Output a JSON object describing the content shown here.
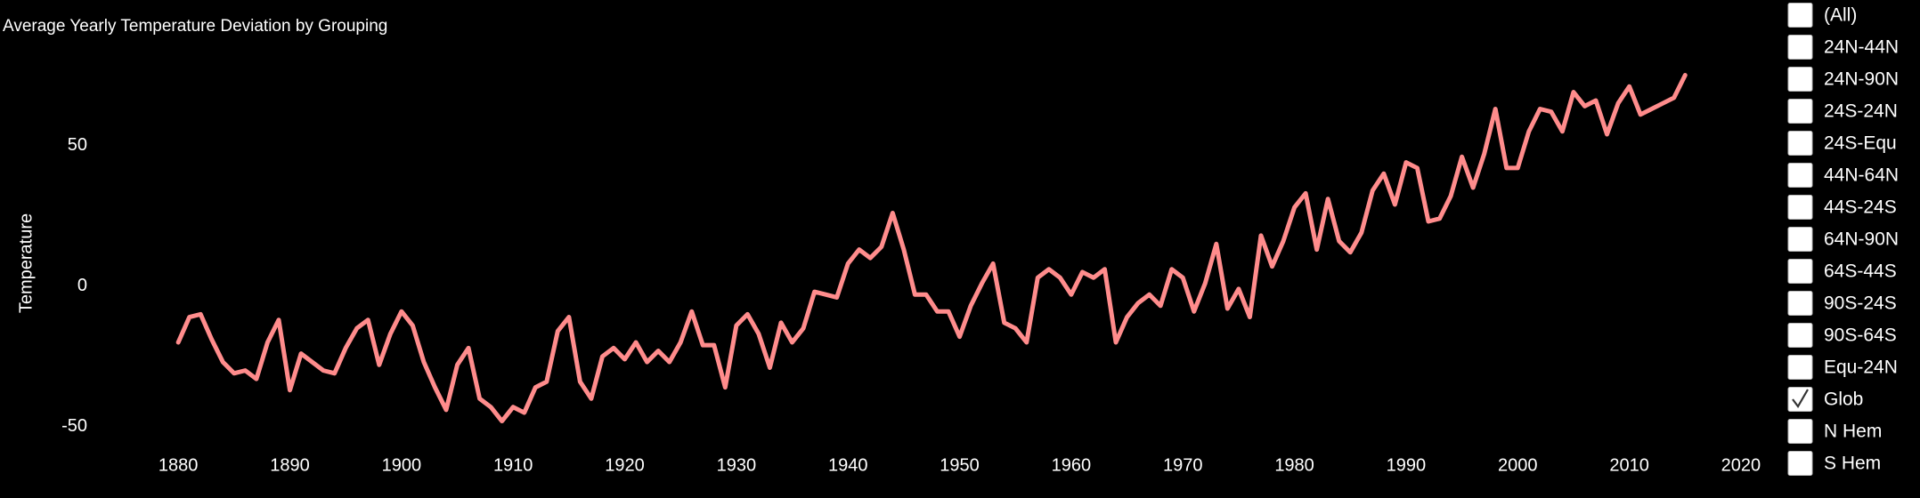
{
  "chart_data": {
    "type": "line",
    "title": "Average Yearly Temperature Deviation by Grouping",
    "y_label": "Temperature",
    "color": "#ff8c8c",
    "x": [
      1880,
      1881,
      1882,
      1883,
      1884,
      1885,
      1886,
      1887,
      1888,
      1889,
      1890,
      1891,
      1892,
      1893,
      1894,
      1895,
      1896,
      1897,
      1898,
      1899,
      1900,
      1901,
      1902,
      1903,
      1904,
      1905,
      1906,
      1907,
      1908,
      1909,
      1910,
      1911,
      1912,
      1913,
      1914,
      1915,
      1916,
      1917,
      1918,
      1919,
      1920,
      1921,
      1922,
      1923,
      1924,
      1925,
      1926,
      1927,
      1928,
      1929,
      1930,
      1931,
      1932,
      1933,
      1934,
      1935,
      1936,
      1937,
      1938,
      1939,
      1940,
      1941,
      1942,
      1943,
      1944,
      1945,
      1946,
      1947,
      1948,
      1949,
      1950,
      1951,
      1952,
      1953,
      1954,
      1955,
      1956,
      1957,
      1958,
      1959,
      1960,
      1961,
      1962,
      1963,
      1964,
      1965,
      1966,
      1967,
      1968,
      1969,
      1970,
      1971,
      1972,
      1973,
      1974,
      1975,
      1976,
      1977,
      1978,
      1979,
      1980,
      1981,
      1982,
      1983,
      1984,
      1985,
      1986,
      1987,
      1988,
      1989,
      1990,
      1991,
      1992,
      1993,
      1994,
      1995,
      1996,
      1997,
      1998,
      1999,
      2000,
      2001,
      2002,
      2003,
      2004,
      2005,
      2006,
      2007,
      2008,
      2009,
      2010,
      2011,
      2012,
      2013,
      2014,
      2015
    ],
    "values": [
      -20,
      -11,
      -10,
      -19,
      -27,
      -31,
      -30,
      -33,
      -20,
      -12,
      -37,
      -24,
      -27,
      -30,
      -31,
      -22,
      -15,
      -12,
      -28,
      -17,
      -9,
      -14,
      -27,
      -36,
      -44,
      -28,
      -22,
      -40,
      -43,
      -48,
      -43,
      -45,
      -36,
      -34,
      -16,
      -11,
      -34,
      -40,
      -25,
      -22,
      -26,
      -20,
      -27,
      -23,
      -27,
      -20,
      -9,
      -21,
      -21,
      -36,
      -14,
      -10,
      -17,
      -29,
      -13,
      -20,
      -15,
      -2,
      -3,
      -4,
      8,
      13,
      10,
      14,
      26,
      13,
      -3,
      -3,
      -9,
      -9,
      -18,
      -7,
      1,
      8,
      -13,
      -15,
      -20,
      3,
      6,
      3,
      -3,
      5,
      3,
      6,
      -20,
      -11,
      -6,
      -3,
      -7,
      6,
      3,
      -9,
      1,
      15,
      -8,
      -1,
      -11,
      18,
      7,
      16,
      28,
      33,
      13,
      31,
      16,
      12,
      19,
      34,
      40,
      29,
      44,
      42,
      23,
      24,
      32,
      46,
      35,
      47,
      63,
      42,
      42,
      55,
      63,
      62,
      55,
      69,
      64,
      66,
      54,
      65,
      71,
      61,
      63,
      65,
      67,
      75
    ],
    "xlim": [
      1875,
      2022
    ],
    "ylim": [
      -60,
      95
    ],
    "xticks": [
      1880,
      1890,
      1900,
      1910,
      1920,
      1930,
      1940,
      1950,
      1960,
      1970,
      1980,
      1990,
      2000,
      2010,
      2020
    ],
    "yticks": [
      -50,
      0,
      50
    ]
  },
  "checklist": {
    "items": [
      {
        "label": "(All)",
        "checked": false
      },
      {
        "label": "24N-44N",
        "checked": false
      },
      {
        "label": "24N-90N",
        "checked": false
      },
      {
        "label": "24S-24N",
        "checked": false
      },
      {
        "label": "24S-Equ",
        "checked": false
      },
      {
        "label": "44N-64N",
        "checked": false
      },
      {
        "label": "44S-24S",
        "checked": false
      },
      {
        "label": "64N-90N",
        "checked": false
      },
      {
        "label": "64S-44S",
        "checked": false
      },
      {
        "label": "90S-24S",
        "checked": false
      },
      {
        "label": "90S-64S",
        "checked": false
      },
      {
        "label": "Equ-24N",
        "checked": false
      },
      {
        "label": "Glob",
        "checked": true
      },
      {
        "label": "N Hem",
        "checked": false
      },
      {
        "label": "S Hem",
        "checked": false
      }
    ]
  }
}
